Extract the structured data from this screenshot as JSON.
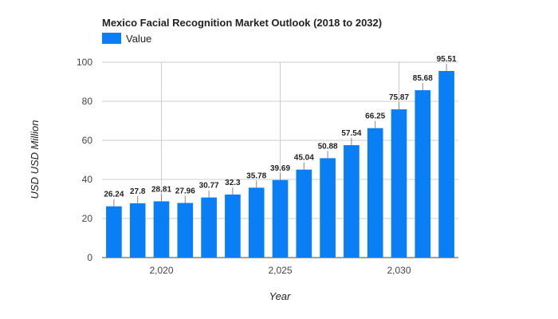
{
  "chart_data": {
    "type": "bar",
    "title": "Mexico Facial Recognition Market Outlook (2018 to 2032)",
    "xlabel": "Year",
    "ylabel": "USD USD Million",
    "legend": {
      "entries": [
        "Value"
      ],
      "placement": "top-left"
    },
    "x": [
      2018,
      2019,
      2020,
      2021,
      2022,
      2023,
      2024,
      2025,
      2026,
      2027,
      2028,
      2029,
      2030,
      2031,
      2032
    ],
    "series": [
      {
        "name": "Value",
        "color": "#0a7ff5",
        "values": [
          26.24,
          27.8,
          28.81,
          27.96,
          30.77,
          32.3,
          35.78,
          39.69,
          45.04,
          50.88,
          57.54,
          66.25,
          75.87,
          85.68,
          95.51
        ]
      }
    ],
    "ylim": [
      0,
      100
    ],
    "y_ticks": [
      0,
      20,
      40,
      60,
      80,
      100
    ],
    "x_ticks": [
      2020,
      2025,
      2030
    ],
    "x_tick_labels": [
      "2,020",
      "2,025",
      "2,030"
    ],
    "grid": true
  }
}
